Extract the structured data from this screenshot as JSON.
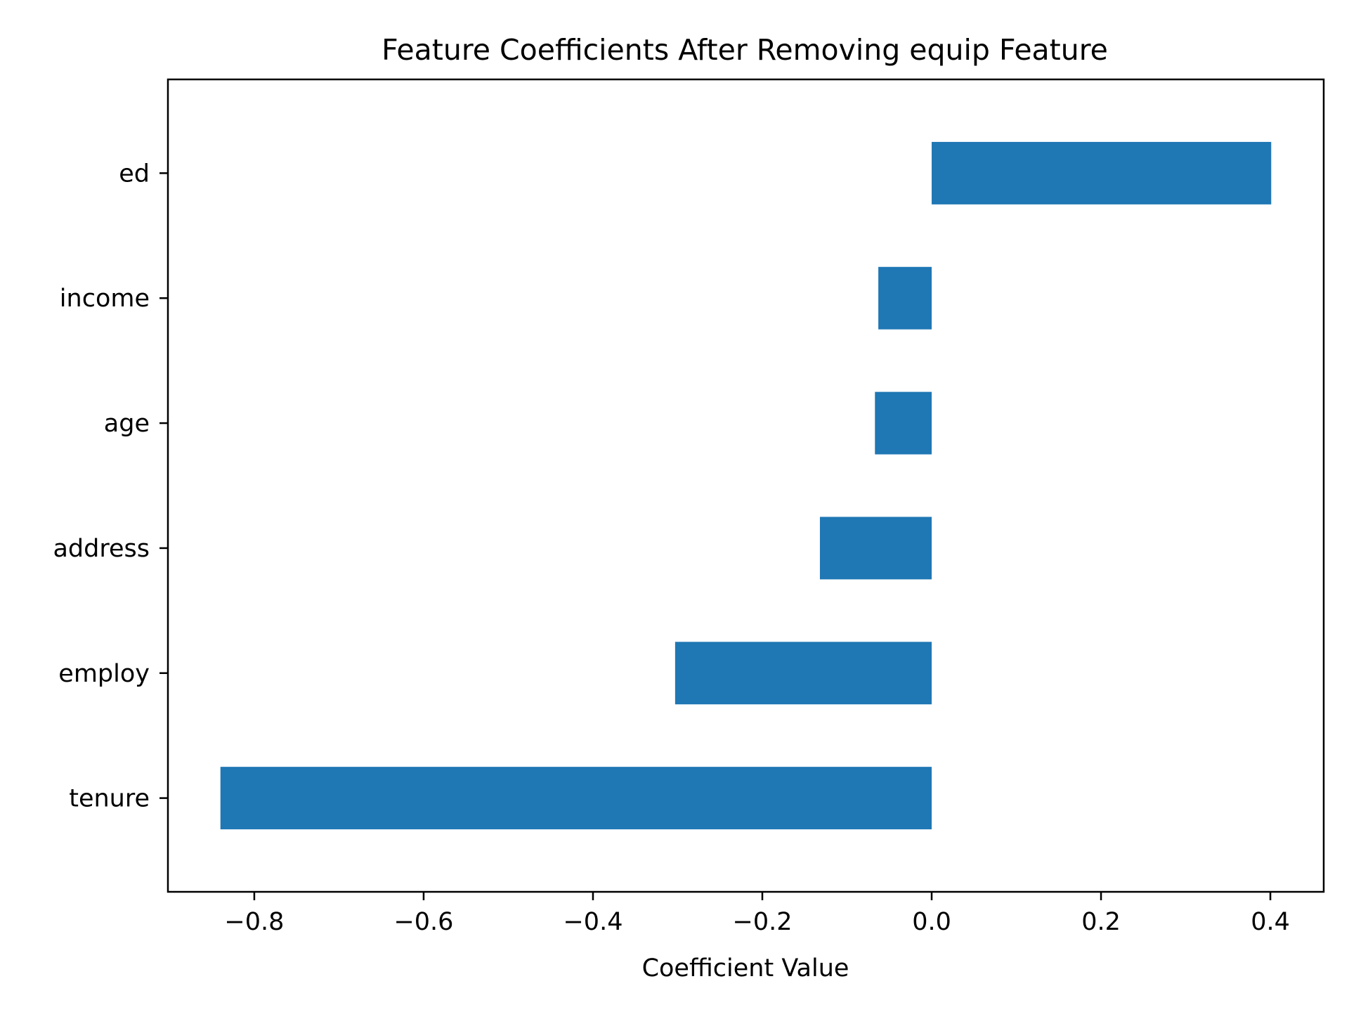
{
  "chart_data": {
    "type": "bar",
    "orientation": "horizontal",
    "title": "Feature Coefficients After Removing equip Feature",
    "xlabel": "Coefficient Value",
    "ylabel": "",
    "categories": [
      "tenure",
      "employ",
      "address",
      "age",
      "income",
      "ed"
    ],
    "values": [
      -0.84,
      -0.303,
      -0.132,
      -0.067,
      -0.063,
      0.401
    ],
    "xlim": [
      -0.902,
      0.463
    ],
    "xticks": [
      -0.8,
      -0.6,
      -0.4,
      -0.2,
      0.0,
      0.2,
      0.4
    ],
    "xtick_labels": [
      "−0.8",
      "−0.6",
      "−0.4",
      "−0.2",
      "0.0",
      "0.2",
      "0.4"
    ],
    "bar_color": "#1f77b4",
    "grid": false,
    "legend": "none"
  }
}
